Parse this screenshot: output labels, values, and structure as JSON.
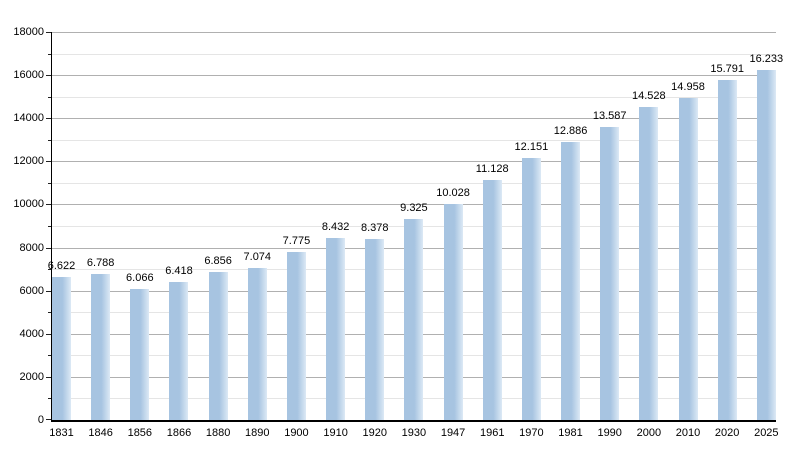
{
  "chart_data": {
    "type": "bar",
    "title": "",
    "xlabel": "",
    "ylabel": "",
    "categories": [
      "1831",
      "1846",
      "1856",
      "1866",
      "1880",
      "1890",
      "1900",
      "1910",
      "1920",
      "1930",
      "1947",
      "1961",
      "1970",
      "1981",
      "1990",
      "2000",
      "2010",
      "2020",
      "2025"
    ],
    "values": [
      6622,
      6788,
      6066,
      6418,
      6856,
      7074,
      7775,
      8432,
      8378,
      9325,
      10028,
      11128,
      12151,
      12886,
      13587,
      14528,
      14958,
      15791,
      16233
    ],
    "value_labels": [
      "6.622",
      "6.788",
      "6.066",
      "6.418",
      "6.856",
      "7.074",
      "7.775",
      "8.432",
      "8.378",
      "9.325",
      "10.028",
      "11.128",
      "12.151",
      "12.886",
      "13.587",
      "14.528",
      "14.958",
      "15.791",
      "16.233"
    ],
    "ylim": [
      0,
      18000
    ],
    "y_major_tick_step": 2000,
    "y_minor_tick_step": 1000,
    "y_major_tick_labels": [
      "0",
      "2000",
      "4000",
      "6000",
      "8000",
      "10000",
      "12000",
      "14000",
      "16000",
      "18000"
    ],
    "grid": "horizontal major and minor, behind bars",
    "legend": "none",
    "colors": {
      "bar_fill_left": "#a7c4e1",
      "bar_fill_right": "#dce9f5",
      "major_grid": "#b0b0b0",
      "minor_grid": "#e5e5e5",
      "axis": "#000000",
      "text": "#000000",
      "background": "#ffffff"
    }
  }
}
